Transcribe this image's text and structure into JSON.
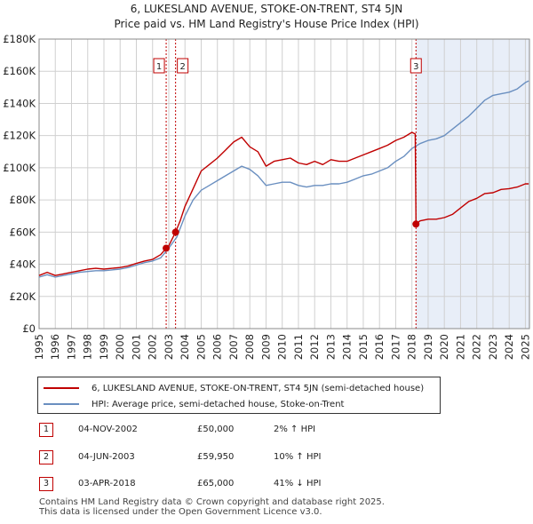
{
  "colors": {
    "price_line": "#c00000",
    "hpi_line": "#6a8fc0",
    "shade": "#e8eef8",
    "grid": "#d0d0d0",
    "marker_line": "#c00000"
  },
  "chart_data": {
    "type": "line",
    "title": "6, LUKESLAND AVENUE, STOKE-ON-TRENT, ST4 5JN",
    "subtitle": "Price paid vs. HM Land Registry's House Price Index (HPI)",
    "xlabel": "",
    "ylabel": "",
    "xlim": [
      1995.0,
      2025.25
    ],
    "ylim": [
      0,
      180000
    ],
    "x_ticks": [
      "1995",
      "1996",
      "1997",
      "1998",
      "1999",
      "2000",
      "2001",
      "2002",
      "2003",
      "2004",
      "2005",
      "2006",
      "2007",
      "2008",
      "2009",
      "2010",
      "2011",
      "2012",
      "2013",
      "2014",
      "2015",
      "2016",
      "2017",
      "2018",
      "2019",
      "2020",
      "2021",
      "2022",
      "2023",
      "2024",
      "2025"
    ],
    "y_ticks": [
      {
        "value": 0,
        "label": "£0"
      },
      {
        "value": 20000,
        "label": "£20K"
      },
      {
        "value": 40000,
        "label": "£40K"
      },
      {
        "value": 60000,
        "label": "£60K"
      },
      {
        "value": 80000,
        "label": "£80K"
      },
      {
        "value": 100000,
        "label": "£100K"
      },
      {
        "value": 120000,
        "label": "£120K"
      },
      {
        "value": 140000,
        "label": "£140K"
      },
      {
        "value": 160000,
        "label": "£160K"
      },
      {
        "value": 180000,
        "label": "£180K"
      }
    ],
    "grid": true,
    "series": [
      {
        "name": "6, LUKESLAND AVENUE, STOKE-ON-TRENT, ST4 5JN (semi-detached house)",
        "x": [
          1995.0,
          1995.5,
          1996.0,
          1996.5,
          1997.0,
          1997.5,
          1998.0,
          1998.5,
          1999.0,
          1999.5,
          2000.0,
          2000.5,
          2001.0,
          2001.5,
          2002.0,
          2002.5,
          2002.84,
          2003.0,
          2003.42,
          2003.7,
          2004.0,
          2004.5,
          2005.0,
          2005.5,
          2006.0,
          2006.5,
          2007.0,
          2007.5,
          2008.0,
          2008.5,
          2009.0,
          2009.5,
          2010.0,
          2010.5,
          2011.0,
          2011.5,
          2012.0,
          2012.5,
          2013.0,
          2013.5,
          2014.0,
          2014.5,
          2015.0,
          2015.5,
          2016.0,
          2016.5,
          2017.0,
          2017.5,
          2018.0,
          2018.2,
          2018.25,
          2018.5,
          2019.0,
          2019.5,
          2020.0,
          2020.5,
          2021.0,
          2021.5,
          2022.0,
          2022.5,
          2023.0,
          2023.5,
          2024.0,
          2024.5,
          2025.0,
          2025.2
        ],
        "values": [
          33000,
          35000,
          33000,
          34000,
          35000,
          36000,
          37000,
          37500,
          37000,
          37500,
          38000,
          39000,
          40500,
          42000,
          43000,
          46000,
          50000,
          51500,
          59950,
          67000,
          76000,
          87000,
          98000,
          102000,
          106000,
          111000,
          116000,
          119000,
          113000,
          110000,
          101000,
          104000,
          105000,
          106000,
          103000,
          102000,
          104000,
          102000,
          105000,
          104000,
          104000,
          106000,
          108000,
          110000,
          112000,
          114000,
          117000,
          119000,
          122000,
          121000,
          65000,
          67000,
          68000,
          68000,
          69000,
          71000,
          75000,
          79000,
          81000,
          84000,
          84500,
          86500,
          87000,
          88000,
          90000,
          90000
        ]
      },
      {
        "name": "HPI: Average price, semi-detached house, Stoke-on-Trent",
        "x": [
          1995.0,
          1995.5,
          1996.0,
          1996.5,
          1997.0,
          1997.5,
          1998.0,
          1998.5,
          1999.0,
          1999.5,
          2000.0,
          2000.5,
          2001.0,
          2001.5,
          2002.0,
          2002.5,
          2003.0,
          2003.5,
          2004.0,
          2004.5,
          2005.0,
          2005.5,
          2006.0,
          2006.5,
          2007.0,
          2007.5,
          2008.0,
          2008.5,
          2009.0,
          2009.5,
          2010.0,
          2010.5,
          2011.0,
          2011.5,
          2012.0,
          2012.5,
          2013.0,
          2013.5,
          2014.0,
          2014.5,
          2015.0,
          2015.5,
          2016.0,
          2016.5,
          2017.0,
          2017.5,
          2018.0,
          2018.5,
          2019.0,
          2019.5,
          2020.0,
          2020.5,
          2021.0,
          2021.5,
          2022.0,
          2022.5,
          2023.0,
          2023.5,
          2024.0,
          2024.5,
          2025.0,
          2025.2
        ],
        "values": [
          32000,
          33500,
          32000,
          33000,
          34000,
          35000,
          35500,
          36000,
          36000,
          36500,
          37000,
          38000,
          39500,
          41000,
          42000,
          44000,
          50000,
          57000,
          70000,
          80000,
          86000,
          89000,
          92000,
          95000,
          98000,
          101000,
          99000,
          95000,
          89000,
          90000,
          91000,
          91000,
          89000,
          88000,
          89000,
          89000,
          90000,
          90000,
          91000,
          93000,
          95000,
          96000,
          98000,
          100000,
          104000,
          107000,
          112000,
          115000,
          117000,
          118000,
          120000,
          124000,
          128000,
          132000,
          137000,
          142000,
          145000,
          146000,
          147000,
          149000,
          153000,
          154000
        ]
      }
    ],
    "transactions": [
      {
        "n": "1",
        "x": 2002.84,
        "price": 50000
      },
      {
        "n": "2",
        "x": 2003.42,
        "price": 59950
      },
      {
        "n": "3",
        "x": 2018.25,
        "price": 65000
      }
    ],
    "shaded_range": [
      2018.25,
      2025.25
    ]
  },
  "legend": {
    "price_label": "6, LUKESLAND AVENUE, STOKE-ON-TRENT, ST4 5JN (semi-detached house)",
    "hpi_label": "HPI: Average price, semi-detached house, Stoke-on-Trent"
  },
  "table": {
    "rows": [
      {
        "num": "1",
        "date": "04-NOV-2002",
        "price": "£50,000",
        "hpi": "2% ↑ HPI"
      },
      {
        "num": "2",
        "date": "04-JUN-2003",
        "price": "£59,950",
        "hpi": "10% ↑ HPI"
      },
      {
        "num": "3",
        "date": "03-APR-2018",
        "price": "£65,000",
        "hpi": "41% ↓ HPI"
      }
    ]
  },
  "footer": {
    "line1": "Contains HM Land Registry data © Crown copyright and database right 2025.",
    "line2": "This data is licensed under the Open Government Licence v3.0."
  }
}
